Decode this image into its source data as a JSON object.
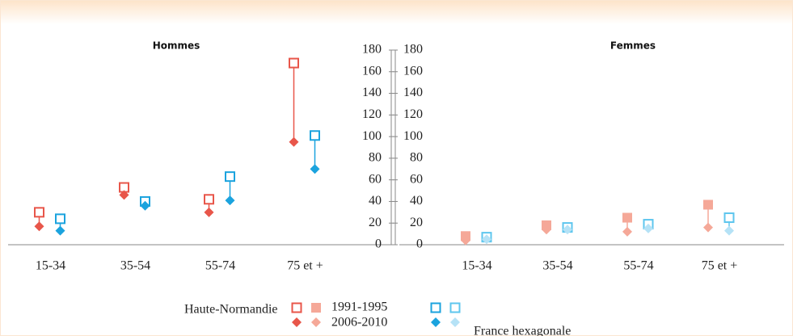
{
  "chart_data": [
    {
      "type": "dumbbell",
      "title": "Hommes",
      "categories": [
        "15-34",
        "35-54",
        "55-74",
        "75 et +"
      ],
      "ylim": [
        0,
        180
      ],
      "yticks": [
        0,
        20,
        40,
        60,
        80,
        100,
        120,
        140,
        160,
        180
      ],
      "series": [
        {
          "color": "#e8564a",
          "marker": "open-square",
          "values": [
            30,
            53,
            42,
            168
          ]
        },
        {
          "color": "#e8564a",
          "marker": "diamond",
          "values": [
            17,
            46,
            30,
            95
          ]
        },
        {
          "color": "#1ba3de",
          "marker": "open-square",
          "values": [
            24,
            40,
            63,
            101
          ]
        },
        {
          "color": "#1ba3de",
          "marker": "diamond",
          "values": [
            13,
            36,
            41,
            70
          ]
        }
      ]
    },
    {
      "type": "dumbbell",
      "title": "Femmes",
      "categories": [
        "15-34",
        "35-54",
        "55-74",
        "75 et +"
      ],
      "ylim": [
        0,
        180
      ],
      "yticks": [
        0,
        20,
        40,
        60,
        80,
        100,
        120,
        140,
        160,
        180
      ],
      "series": [
        {
          "color": "#f5a898",
          "marker": "square",
          "values": [
            8,
            18,
            25,
            37
          ]
        },
        {
          "color": "#f5a898",
          "marker": "diamond",
          "values": [
            4,
            14,
            12,
            16
          ]
        },
        {
          "color": "#5ec6ee",
          "marker": "open-square",
          "values": [
            7,
            16,
            19,
            25
          ]
        },
        {
          "color": "#b5e2f6",
          "marker": "diamond",
          "values": [
            5,
            14,
            15,
            13
          ]
        }
      ]
    }
  ],
  "legend": {
    "groups": [
      "Haute-Normandie",
      "France hexagonale"
    ],
    "periods": [
      "1991-1995",
      "2006-2010"
    ]
  }
}
